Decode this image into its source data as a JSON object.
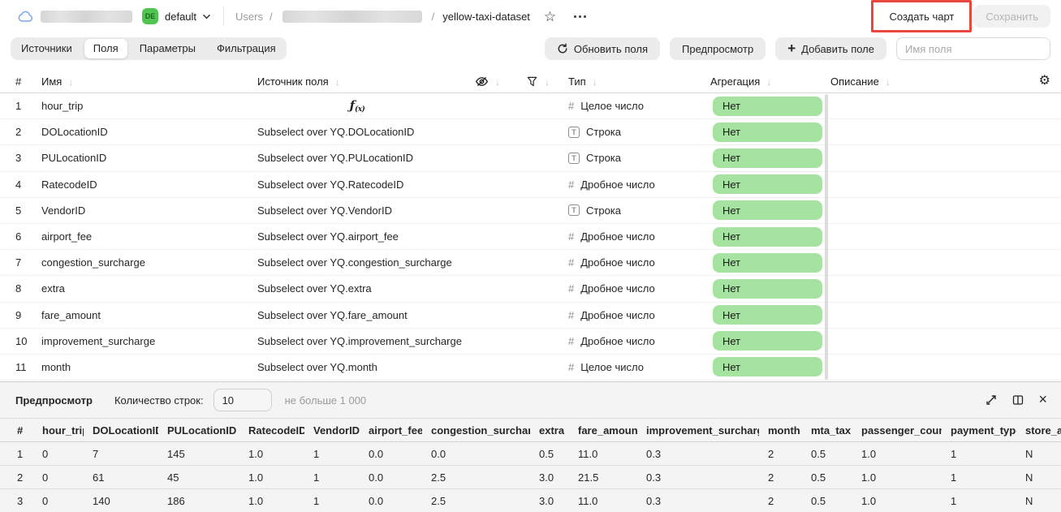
{
  "colors": {
    "workspace_badge_green": "#4fc44f",
    "aggregation_pill_green": "#a6e3a0",
    "annotation_red": "#e8473c"
  },
  "topbar": {
    "workspace_badge": "DE",
    "workspace_name": "default",
    "breadcrumb_root": "Users",
    "breadcrumb_separator": "/",
    "dataset_name": "yellow-taxi-dataset",
    "create_chart_button": "Создать чарт",
    "save_button": "Сохранить"
  },
  "tabs": {
    "items": [
      {
        "label": "Источники",
        "active": false
      },
      {
        "label": "Поля",
        "active": true
      },
      {
        "label": "Параметры",
        "active": false
      },
      {
        "label": "Фильтрация",
        "active": false
      }
    ]
  },
  "toolbar": {
    "refresh_button": "Обновить поля",
    "preview_button": "Предпросмотр",
    "add_field_button": "Добавить поле",
    "field_name_placeholder": "Имя поля"
  },
  "fields_table": {
    "columns": {
      "num": "#",
      "name": "Имя",
      "source": "Источник поля",
      "type": "Тип",
      "aggregation": "Агрегация",
      "description": "Описание"
    },
    "rows": [
      {
        "num": "1",
        "name": "hour_trip",
        "source": "",
        "is_formula": true,
        "type_kind": "number",
        "type_label": "Целое число",
        "aggregation": "Нет"
      },
      {
        "num": "2",
        "name": "DOLocationID",
        "source": "Subselect over YQ.DOLocationID",
        "is_formula": false,
        "type_kind": "string",
        "type_label": "Строка",
        "aggregation": "Нет"
      },
      {
        "num": "3",
        "name": "PULocationID",
        "source": "Subselect over YQ.PULocationID",
        "is_formula": false,
        "type_kind": "string",
        "type_label": "Строка",
        "aggregation": "Нет"
      },
      {
        "num": "4",
        "name": "RatecodeID",
        "source": "Subselect over YQ.RatecodeID",
        "is_formula": false,
        "type_kind": "number",
        "type_label": "Дробное число",
        "aggregation": "Нет"
      },
      {
        "num": "5",
        "name": "VendorID",
        "source": "Subselect over YQ.VendorID",
        "is_formula": false,
        "type_kind": "string",
        "type_label": "Строка",
        "aggregation": "Нет"
      },
      {
        "num": "6",
        "name": "airport_fee",
        "source": "Subselect over YQ.airport_fee",
        "is_formula": false,
        "type_kind": "number",
        "type_label": "Дробное число",
        "aggregation": "Нет"
      },
      {
        "num": "7",
        "name": "congestion_surcharge",
        "source": "Subselect over YQ.congestion_surcharge",
        "is_formula": false,
        "type_kind": "number",
        "type_label": "Дробное число",
        "aggregation": "Нет"
      },
      {
        "num": "8",
        "name": "extra",
        "source": "Subselect over YQ.extra",
        "is_formula": false,
        "type_kind": "number",
        "type_label": "Дробное число",
        "aggregation": "Нет"
      },
      {
        "num": "9",
        "name": "fare_amount",
        "source": "Subselect over YQ.fare_amount",
        "is_formula": false,
        "type_kind": "number",
        "type_label": "Дробное число",
        "aggregation": "Нет"
      },
      {
        "num": "10",
        "name": "improvement_surcharge",
        "source": "Subselect over YQ.improvement_surcharge",
        "is_formula": false,
        "type_kind": "number",
        "type_label": "Дробное число",
        "aggregation": "Нет"
      },
      {
        "num": "11",
        "name": "month",
        "source": "Subselect over YQ.month",
        "is_formula": false,
        "type_kind": "number",
        "type_label": "Целое число",
        "aggregation": "Нет"
      }
    ]
  },
  "preview_panel": {
    "title": "Предпросмотр",
    "row_count_label": "Количество строк:",
    "row_count_value": "10",
    "row_count_hint": "не больше 1 000",
    "table": {
      "columns": [
        "#",
        "hour_trip",
        "DOLocationID",
        "PULocationID",
        "RatecodeID",
        "VendorID",
        "airport_fee",
        "congestion_surcharge",
        "extra",
        "fare_amount",
        "improvement_surcharge",
        "month",
        "mta_tax",
        "passenger_count",
        "payment_type",
        "store_and_fwd_flag"
      ],
      "rows": [
        [
          "1",
          "0",
          "7",
          "145",
          "1.0",
          "1",
          "0.0",
          "0.0",
          "0.5",
          "11.0",
          "0.3",
          "2",
          "0.5",
          "1.0",
          "1",
          "N"
        ],
        [
          "2",
          "0",
          "61",
          "45",
          "1.0",
          "1",
          "0.0",
          "2.5",
          "3.0",
          "21.5",
          "0.3",
          "2",
          "0.5",
          "1.0",
          "1",
          "N"
        ],
        [
          "3",
          "0",
          "140",
          "186",
          "1.0",
          "1",
          "0.0",
          "2.5",
          "3.0",
          "11.0",
          "0.3",
          "2",
          "0.5",
          "1.0",
          "1",
          "N"
        ]
      ]
    }
  },
  "icons": {
    "formula_f": "ƒ",
    "formula_args": "(x)",
    "plus": "+",
    "star": "☆",
    "gear": "⚙",
    "close": "×",
    "sort_arrow": "↓"
  }
}
